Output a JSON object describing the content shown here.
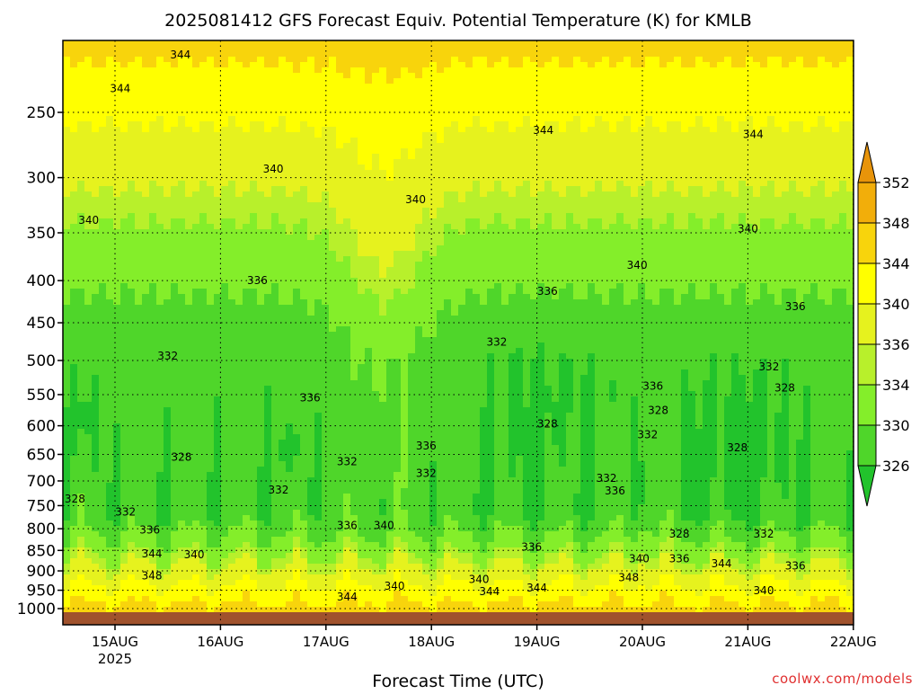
{
  "chart_data": {
    "type": "heatmap",
    "title": "2025081412 GFS Forecast Equiv. Potential Temperature (K) for KMLB",
    "xlabel": "Forecast Time (UTC)",
    "ylabel": "",
    "x_ticks": [
      "15AUG",
      "16AUG",
      "17AUG",
      "18AUG",
      "19AUG",
      "20AUG",
      "21AUG",
      "22AUG"
    ],
    "x_year_label": "2025",
    "y_ticks": [
      250,
      300,
      350,
      400,
      450,
      500,
      550,
      600,
      650,
      700,
      750,
      800,
      850,
      900,
      950,
      1000
    ],
    "y_scale": "log-pressure",
    "ylim": [
      1020,
      200
    ],
    "colorbar": {
      "levels": [
        326,
        330,
        334,
        336,
        340,
        344,
        348,
        352
      ],
      "colors": [
        "#22c32c",
        "#4fd62a",
        "#84ee2a",
        "#b8f02b",
        "#e6f21e",
        "#ffff00",
        "#f8d40c",
        "#f2ae0a",
        "#e8940a"
      ],
      "extend": "both"
    },
    "contour_labels": [
      {
        "text": "344",
        "day": 15.62,
        "p": 213
      },
      {
        "text": "344",
        "day": 15.05,
        "p": 234
      },
      {
        "text": "344",
        "day": 19.06,
        "p": 263
      },
      {
        "text": "344",
        "day": 21.05,
        "p": 266
      },
      {
        "text": "340",
        "day": 16.5,
        "p": 293
      },
      {
        "text": "340",
        "day": 17.85,
        "p": 319
      },
      {
        "text": "340",
        "day": 14.75,
        "p": 338
      },
      {
        "text": "340",
        "day": 21.0,
        "p": 346
      },
      {
        "text": "340",
        "day": 19.95,
        "p": 383
      },
      {
        "text": "336",
        "day": 16.35,
        "p": 400
      },
      {
        "text": "336",
        "day": 19.1,
        "p": 412
      },
      {
        "text": "336",
        "day": 21.45,
        "p": 430
      },
      {
        "text": "332",
        "day": 18.62,
        "p": 475
      },
      {
        "text": "332",
        "day": 15.5,
        "p": 494
      },
      {
        "text": "332",
        "day": 21.2,
        "p": 509
      },
      {
        "text": "336",
        "day": 20.1,
        "p": 537
      },
      {
        "text": "328",
        "day": 21.35,
        "p": 540
      },
      {
        "text": "336",
        "day": 16.85,
        "p": 555
      },
      {
        "text": "328",
        "day": 20.15,
        "p": 575
      },
      {
        "text": "328",
        "day": 19.1,
        "p": 597
      },
      {
        "text": "332",
        "day": 20.05,
        "p": 615
      },
      {
        "text": "336",
        "day": 17.95,
        "p": 635
      },
      {
        "text": "328",
        "day": 15.63,
        "p": 655
      },
      {
        "text": "332",
        "day": 17.2,
        "p": 663
      },
      {
        "text": "328",
        "day": 20.9,
        "p": 638
      },
      {
        "text": "332",
        "day": 17.95,
        "p": 685
      },
      {
        "text": "332",
        "day": 19.66,
        "p": 695
      },
      {
        "text": "332",
        "day": 16.55,
        "p": 718
      },
      {
        "text": "336",
        "day": 19.74,
        "p": 720
      },
      {
        "text": "328",
        "day": 14.62,
        "p": 736
      },
      {
        "text": "332",
        "day": 15.1,
        "p": 763
      },
      {
        "text": "336",
        "day": 15.33,
        "p": 803
      },
      {
        "text": "336",
        "day": 17.2,
        "p": 793
      },
      {
        "text": "340",
        "day": 17.55,
        "p": 793
      },
      {
        "text": "328",
        "day": 20.35,
        "p": 812
      },
      {
        "text": "332",
        "day": 21.15,
        "p": 812
      },
      {
        "text": "336",
        "day": 18.95,
        "p": 842
      },
      {
        "text": "344",
        "day": 15.35,
        "p": 858
      },
      {
        "text": "340",
        "day": 15.75,
        "p": 860
      },
      {
        "text": "340",
        "day": 19.97,
        "p": 870
      },
      {
        "text": "336",
        "day": 20.35,
        "p": 870
      },
      {
        "text": "344",
        "day": 20.75,
        "p": 882
      },
      {
        "text": "336",
        "day": 21.45,
        "p": 887
      },
      {
        "text": "348",
        "day": 15.35,
        "p": 912
      },
      {
        "text": "348",
        "day": 19.87,
        "p": 917
      },
      {
        "text": "340",
        "day": 18.45,
        "p": 922
      },
      {
        "text": "340",
        "day": 17.65,
        "p": 939
      },
      {
        "text": "344",
        "day": 18.55,
        "p": 953
      },
      {
        "text": "344",
        "day": 19.0,
        "p": 944
      },
      {
        "text": "340",
        "day": 21.15,
        "p": 951
      },
      {
        "text": "344",
        "day": 17.2,
        "p": 968
      }
    ]
  },
  "credit": "coolwx.com/models"
}
